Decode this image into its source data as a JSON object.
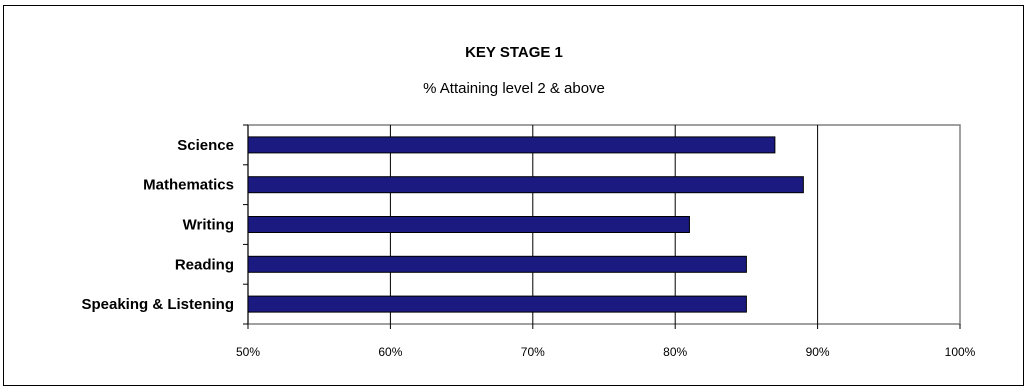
{
  "chart_data": {
    "type": "bar",
    "orientation": "horizontal",
    "title": "KEY STAGE 1",
    "subtitle": "% Attaining level 2 & above",
    "categories": [
      "Science",
      "Mathematics",
      "Writing",
      "Reading",
      "Speaking & Listening"
    ],
    "values": [
      87,
      89,
      81,
      85,
      85
    ],
    "xlim": [
      50,
      100
    ],
    "xticks": [
      "50%",
      "60%",
      "70%",
      "80%",
      "90%",
      "100%"
    ],
    "grid": "vertical",
    "legend": "none",
    "colors": {
      "bar": "#1a1a80",
      "bar_border": "#000000",
      "plot_border": "#808080",
      "grid": "#000000"
    }
  }
}
